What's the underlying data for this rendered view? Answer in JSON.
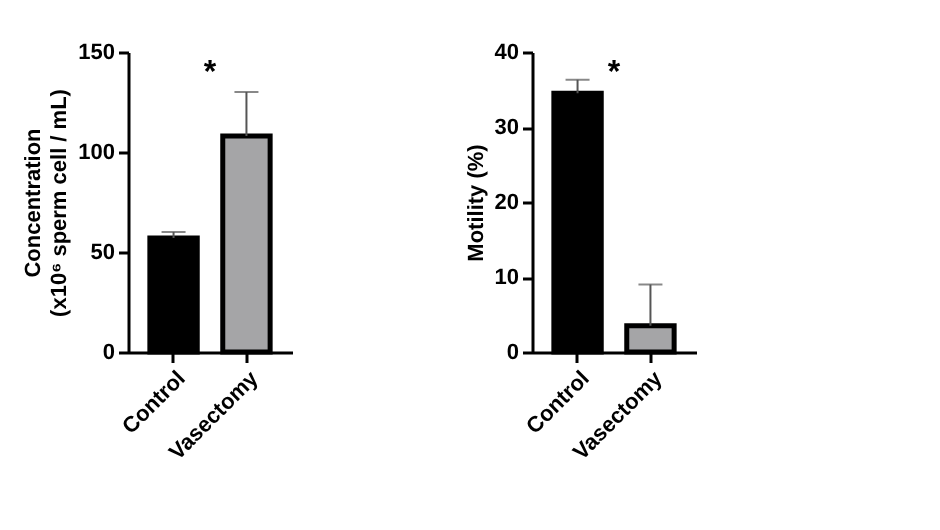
{
  "chart_data": [
    {
      "type": "bar",
      "categories": [
        "Control",
        "Vasectomy"
      ],
      "values": [
        57,
        108
      ],
      "colors": [
        "#000000",
        "#a5a5a7"
      ],
      "errors": [
        [
          57,
          60
        ],
        [
          108,
          130
        ]
      ],
      "ylabel": "Concentration\n(x10⁶ sperm cell / mL)",
      "ylim": [
        0,
        150
      ],
      "yticks": [
        0,
        50,
        100,
        150
      ],
      "grid": false,
      "annotations": [
        "*"
      ]
    },
    {
      "type": "bar",
      "categories": [
        "Control",
        "Vasectomy"
      ],
      "values": [
        34.5,
        3.5
      ],
      "colors": [
        "#000000",
        "#a5a5a7"
      ],
      "errors": [
        [
          34.5,
          36.3
        ],
        [
          3.5,
          9
        ]
      ],
      "ylabel": "Motility (%)",
      "ylim": [
        0,
        40
      ],
      "yticks": [
        0,
        10,
        20,
        30,
        40
      ],
      "grid": false,
      "annotations": [
        "*"
      ]
    }
  ]
}
